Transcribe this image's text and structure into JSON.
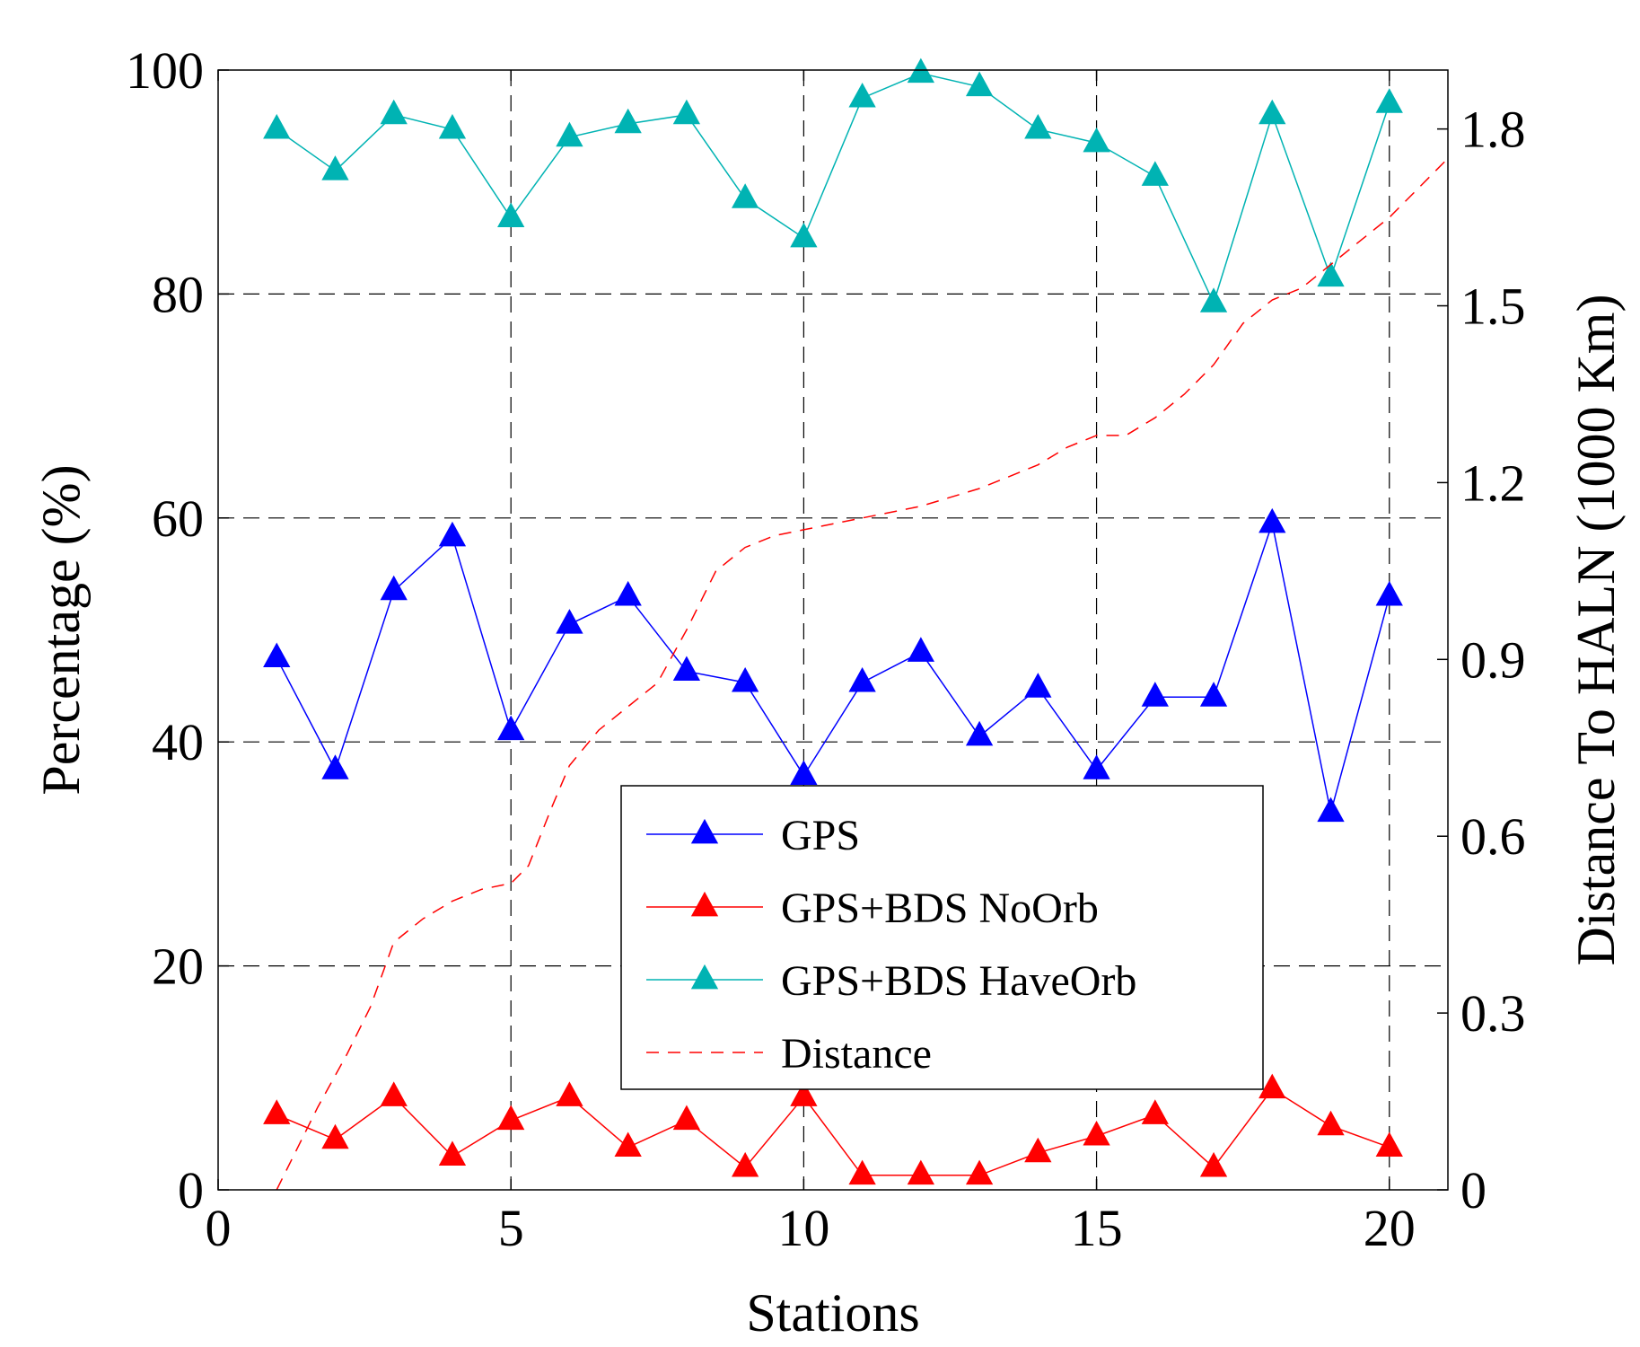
{
  "chart_data": {
    "type": "line",
    "xlabel": "Stations",
    "ylabel": "Percentage (%)",
    "y2label": "Distance To HALN (1000 Km)",
    "xlim": [
      0,
      21
    ],
    "ylim": [
      0,
      100
    ],
    "y2lim": [
      0,
      1.9
    ],
    "xticks": [
      "0",
      "5",
      "10",
      "15",
      "20"
    ],
    "xtick_values": [
      0,
      5,
      10,
      15,
      20
    ],
    "yticks": [
      "0",
      "20",
      "40",
      "60",
      "80",
      "100"
    ],
    "ytick_values": [
      0,
      20,
      40,
      60,
      80,
      100
    ],
    "y2ticks": [
      "0",
      "0.3",
      "0.6",
      "0.9",
      "1.2",
      "1.5",
      "1.8"
    ],
    "y2tick_values": [
      0,
      0.3,
      0.6,
      0.9,
      1.2,
      1.5,
      1.8
    ],
    "grid": true,
    "legend_position": "center-right",
    "x": [
      1,
      2,
      3,
      4,
      5,
      6,
      7,
      8,
      9,
      10,
      11,
      12,
      13,
      14,
      15,
      16,
      17,
      18,
      19,
      20
    ],
    "series": [
      {
        "name": "GPS",
        "axis": "left",
        "color": "#0000ff",
        "marker": "triangle",
        "line": "solid",
        "values": [
          47.5,
          37.5,
          53.5,
          58.3,
          41.0,
          50.5,
          53.0,
          46.3,
          45.3,
          37.0,
          45.3,
          48.0,
          40.5,
          44.8,
          37.5,
          44.0,
          44.0,
          59.5,
          33.7,
          53.0
        ]
      },
      {
        "name": "GPS+BDS NoOrb",
        "axis": "left",
        "color": "#ff0000",
        "marker": "triangle",
        "line": "solid",
        "values": [
          6.7,
          4.5,
          8.3,
          3.0,
          6.2,
          8.3,
          3.8,
          6.2,
          2.0,
          8.3,
          1.3,
          1.3,
          1.3,
          3.3,
          4.8,
          6.7,
          2.0,
          9.0,
          5.7,
          3.8
        ]
      },
      {
        "name": "GPS+BDS HaveOrb",
        "axis": "left",
        "color": "#00b3b3",
        "marker": "triangle",
        "line": "solid",
        "values": [
          94.7,
          91.0,
          96.0,
          94.7,
          86.8,
          94.0,
          95.2,
          96.0,
          88.5,
          85.0,
          97.5,
          99.7,
          98.5,
          94.7,
          93.5,
          90.5,
          79.2,
          96.0,
          81.5,
          97.0
        ]
      },
      {
        "name": "Distance",
        "axis": "right",
        "color": "#ff0000",
        "marker": "none",
        "line": "dashed",
        "x": [
          1,
          1.3,
          1.7,
          2.2,
          2.6,
          3.0,
          3.5,
          4.0,
          4.5,
          5.0,
          5.3,
          5.7,
          6.0,
          6.5,
          7.0,
          7.5,
          8.0,
          8.5,
          9.0,
          9.5,
          10.0,
          11.0,
          12.0,
          13.0,
          13.5,
          14.0,
          14.5,
          15.0,
          15.5,
          16.0,
          16.5,
          17.0,
          17.5,
          18.0,
          18.5,
          19.0,
          19.5,
          20.0,
          20.5,
          21.0
        ],
        "values": [
          0,
          0.06,
          0.14,
          0.23,
          0.31,
          0.42,
          0.46,
          0.49,
          0.51,
          0.52,
          0.55,
          0.65,
          0.72,
          0.78,
          0.82,
          0.86,
          0.95,
          1.05,
          1.09,
          1.11,
          1.12,
          1.14,
          1.16,
          1.19,
          1.21,
          1.23,
          1.26,
          1.28,
          1.28,
          1.31,
          1.35,
          1.4,
          1.47,
          1.51,
          1.53,
          1.57,
          1.61,
          1.65,
          1.7,
          1.75
        ]
      }
    ]
  }
}
